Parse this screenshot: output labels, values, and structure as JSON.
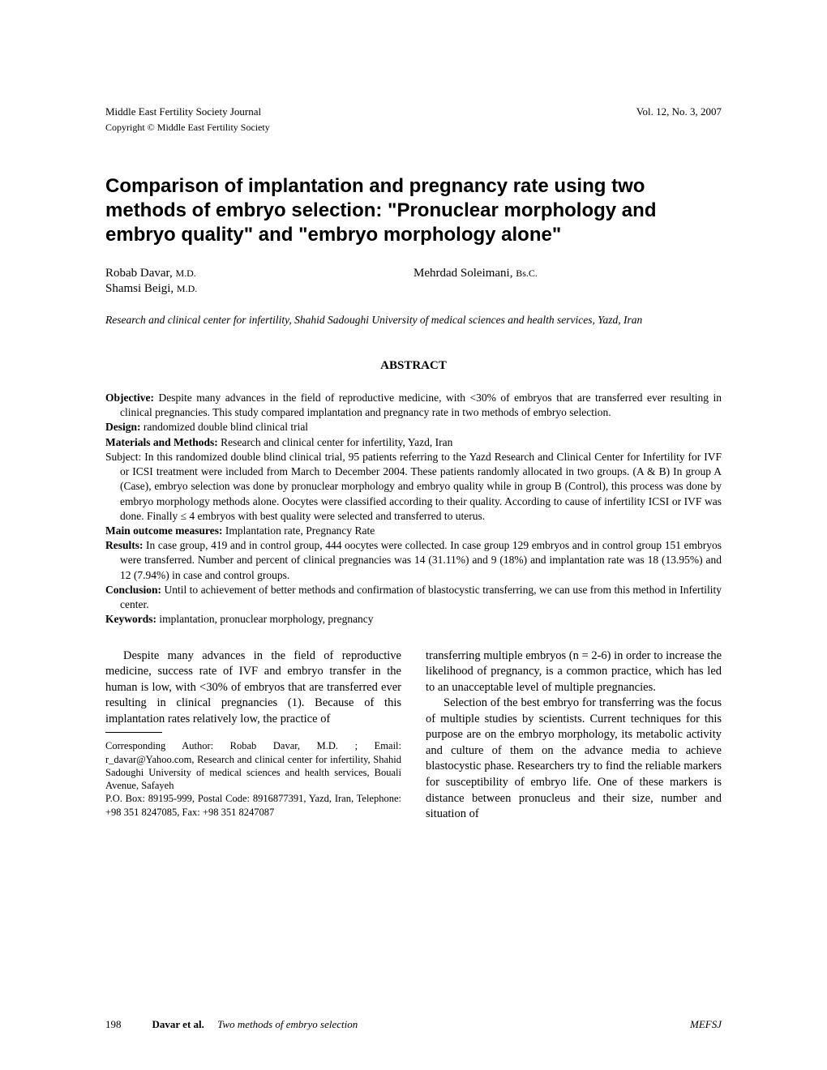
{
  "header": {
    "journal": "Middle East Fertility Society Journal",
    "issue": "Vol. 12, No. 3, 2007",
    "copyright": "Copyright © Middle East Fertility Society"
  },
  "title": "Comparison of implantation and pregnancy rate using two methods of embryo selection: \"Pronuclear morphology and embryo quality\" and \"embryo morphology alone\"",
  "authors": {
    "a1_name": "Robab Davar, ",
    "a1_degree": "M.D.",
    "a2_name": "Mehrdad Soleimani, ",
    "a2_degree": "Bs.C.",
    "a3_name": "Shamsi Beigi, ",
    "a3_degree": "M.D."
  },
  "affiliation": "Research and clinical center for infertility, Shahid Sadoughi University of medical sciences and health services, Yazd, Iran",
  "abstract_heading": "ABSTRACT",
  "abstract": {
    "objective_label": "Objective:",
    "objective_text": " Despite many advances in the field of reproductive medicine, with <30% of embryos that are transferred ever resulting in clinical pregnancies. This study compared implantation and pregnancy rate in two methods of embryo selection.",
    "design_label": "Design:",
    "design_text": " randomized double blind clinical trial",
    "materials_label": "Materials and Methods:",
    "materials_text": " Research and clinical center for infertility, Yazd, Iran",
    "subject_text": "Subject: In this randomized double blind clinical trial, 95 patients referring to the Yazd Research and Clinical Center for Infertility for IVF or ICSI treatment were included from March to December 2004. These patients randomly allocated in two groups. (A & B) In group A (Case), embryo selection was done by pronuclear morphology and embryo quality while in group B (Control), this process was done by embryo morphology methods alone. Oocytes were classified according to their quality. According to cause of infertility ICSI or IVF was done. Finally ≤ 4 embryos with best quality were selected and transferred to uterus.",
    "outcome_label": "Main outcome measures:",
    "outcome_text": " Implantation rate, Pregnancy Rate",
    "results_label": "Results:",
    "results_text": " In case group, 419 and in control group, 444 oocytes were collected. In case group 129 embryos and in control group 151 embryos were transferred. Number and percent of clinical pregnancies was 14 (31.11%) and 9 (18%) and implantation rate was 18 (13.95%) and 12 (7.94%) in case and control groups.",
    "conclusion_label": "Conclusion:",
    "conclusion_text": " Until to achievement of better methods and confirmation of blastocystic transferring, we can use from this method in Infertility center.",
    "keywords_label": "Keywords:",
    "keywords_text": " implantation, pronuclear morphology, pregnancy"
  },
  "body": {
    "left_para": "Despite many advances in the field of reproductive medicine, success rate of IVF and embryo transfer in the human is low, with <30% of embryos that are transferred ever resulting in clinical pregnancies (1). Because of this implantation rates relatively low, the practice of",
    "right_para1": "transferring multiple embryos (n = 2-6) in order to increase the likelihood of pregnancy, is a common practice, which has led to an unacceptable level of multiple pregnancies.",
    "right_para2": "Selection of the best embryo for transferring was the focus of multiple studies by scientists. Current techniques for this purpose are on the embryo morphology, its metabolic activity and culture of them on the advance media to achieve blastocystic phase. Researchers try to find the reliable markers for susceptibility of embryo life. One of these markers is distance between pronucleus and their  size,  number and situation of"
  },
  "corresponding": {
    "line1": "Corresponding Author: Robab Davar, M.D. ; Email: r_davar@Yahoo.com, Research and clinical center for infertility, Shahid Sadoughi University of medical sciences and health services, Bouali Avenue, Safayeh",
    "line2": "P.O. Box: 89195-999, Postal Code: 8916877391, Yazd, Iran, Telephone: +98 351 8247085, Fax: +98 351 8247087"
  },
  "footer": {
    "page": "198",
    "author": "Davar et al.",
    "running_title": "Two methods of embryo selection",
    "journal_abbrev": "MEFSJ"
  }
}
